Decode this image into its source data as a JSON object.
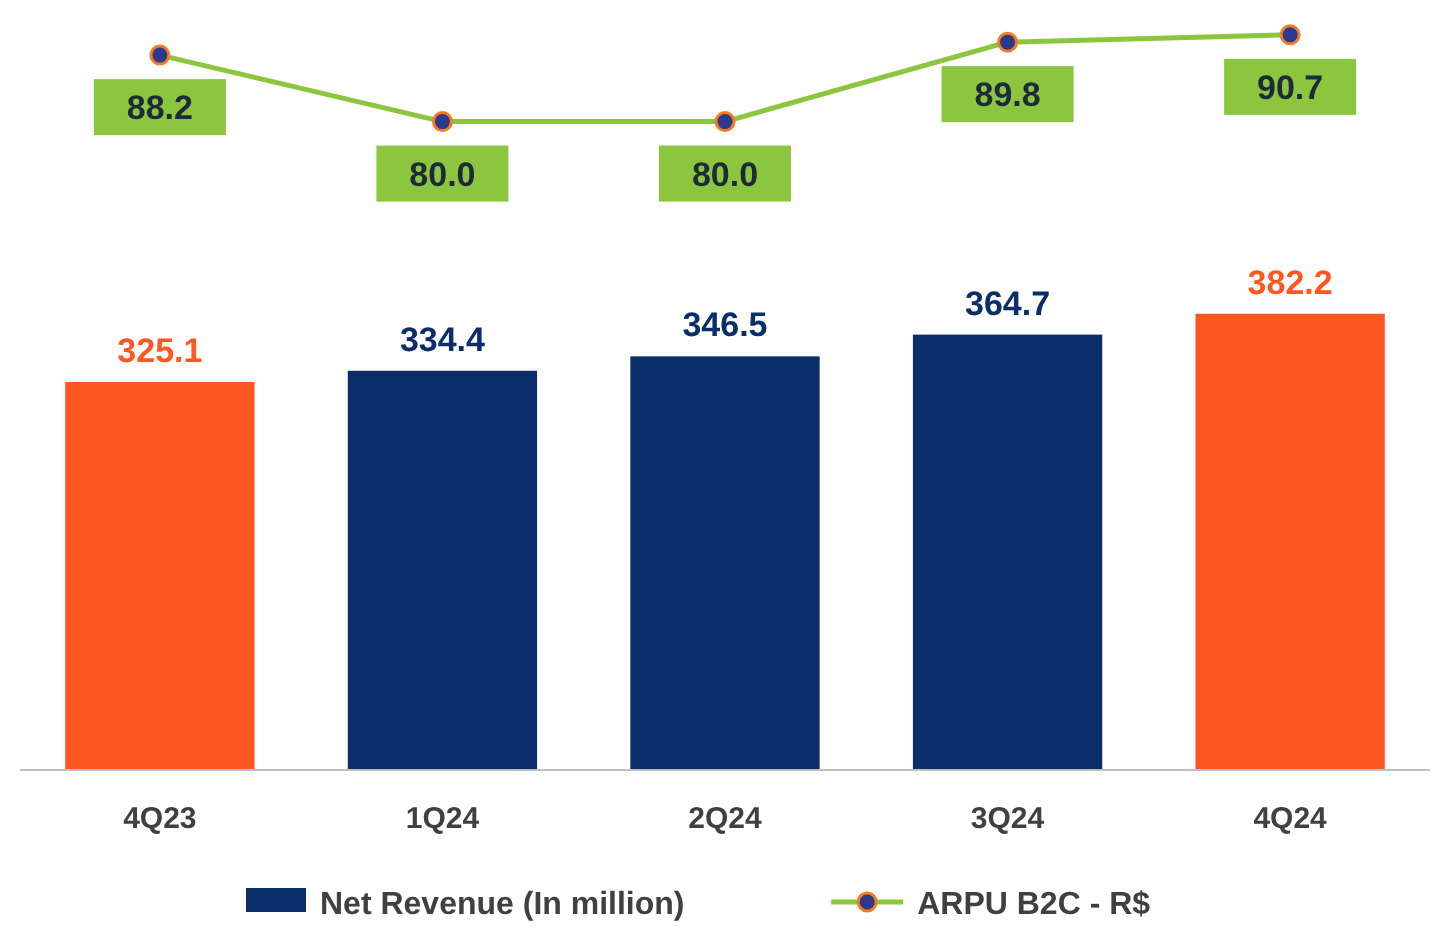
{
  "chart_data": {
    "type": "bar",
    "categories": [
      "4Q23",
      "1Q24",
      "2Q24",
      "3Q24",
      "4Q24"
    ],
    "series": [
      {
        "name": "Net Revenue (In million)",
        "color": "#0b2d69",
        "colors": [
          "#ff5722",
          "#0b2d69",
          "#0b2d69",
          "#0b2d69",
          "#ff5722"
        ],
        "values": [
          325.1,
          334.4,
          346.5,
          364.7,
          382.2
        ],
        "value_labels": [
          "325.1",
          "334.4",
          "346.5",
          "364.7",
          "382.2"
        ]
      },
      {
        "name": "ARPU B2C - R$",
        "type": "line",
        "axis": "y2",
        "color": "#8cc63f",
        "values": [
          88.2,
          80.0,
          80.0,
          89.8,
          90.7
        ],
        "value_labels": [
          "88.2",
          "80.0",
          "80.0",
          "89.8",
          "90.7"
        ]
      }
    ],
    "ylim": [
      0,
      645
    ],
    "y2lim": [
      0,
      95
    ],
    "marker": "circle",
    "legend": "bottom",
    "tick_labels": "x"
  }
}
